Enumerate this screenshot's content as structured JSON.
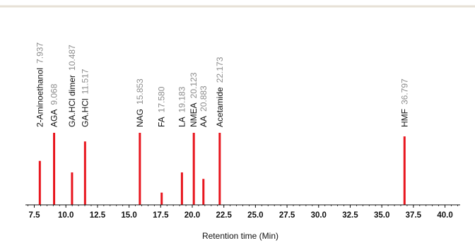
{
  "chart_data": {
    "type": "bar",
    "xlabel": "Retention time (Min)",
    "ylabel": "",
    "xlim": [
      6.8,
      41.2
    ],
    "ylim": [
      0,
      1
    ],
    "grid": false,
    "xticks": [
      7.5,
      10.0,
      12.5,
      15.0,
      17.5,
      20.0,
      22.5,
      25.0,
      27.5,
      30.0,
      32.5,
      35.0,
      37.5,
      40.0
    ],
    "xtick_labels": [
      "7.5",
      "10.0",
      "12.5",
      "15.0",
      "17.5",
      "20.0",
      "22.5",
      "25.0",
      "27.5",
      "30.0",
      "32.5",
      "35.0",
      "37.5",
      "40.0"
    ],
    "peaks": [
      {
        "name": "2-Aminoethanol",
        "time": 7.937,
        "time_label": "7.937",
        "height": 0.61
      },
      {
        "name": "AGA",
        "time": 9.068,
        "time_label": "9.068",
        "height": 1.0
      },
      {
        "name": "GA.HCl dimer",
        "time": 10.487,
        "time_label": "10.487",
        "height": 0.45
      },
      {
        "name": "GA.HCl",
        "time": 11.517,
        "time_label": "11.517",
        "height": 0.88
      },
      {
        "name": "NAG",
        "time": 15.853,
        "time_label": "15.853",
        "height": 1.0
      },
      {
        "name": "FA",
        "time": 17.58,
        "time_label": "17.580",
        "height": 0.17
      },
      {
        "name": "LA",
        "time": 19.183,
        "time_label": "19.183",
        "height": 0.45
      },
      {
        "name": "NMEA",
        "time": 20.123,
        "time_label": "20.123",
        "height": 1.0
      },
      {
        "name": "AA",
        "time": 20.883,
        "time_label": "20.883",
        "height": 0.36
      },
      {
        "name": "Acetamide",
        "time": 22.173,
        "time_label": "22.173",
        "height": 1.0
      },
      {
        "name": "HMF",
        "time": 36.797,
        "time_label": "36.797",
        "height": 0.95
      }
    ],
    "colors": {
      "bar": "#e8161e",
      "name_text": "#111111",
      "time_text": "#8c8c8c",
      "axis": "#111111",
      "header_rule": "#e6e0d6"
    }
  }
}
